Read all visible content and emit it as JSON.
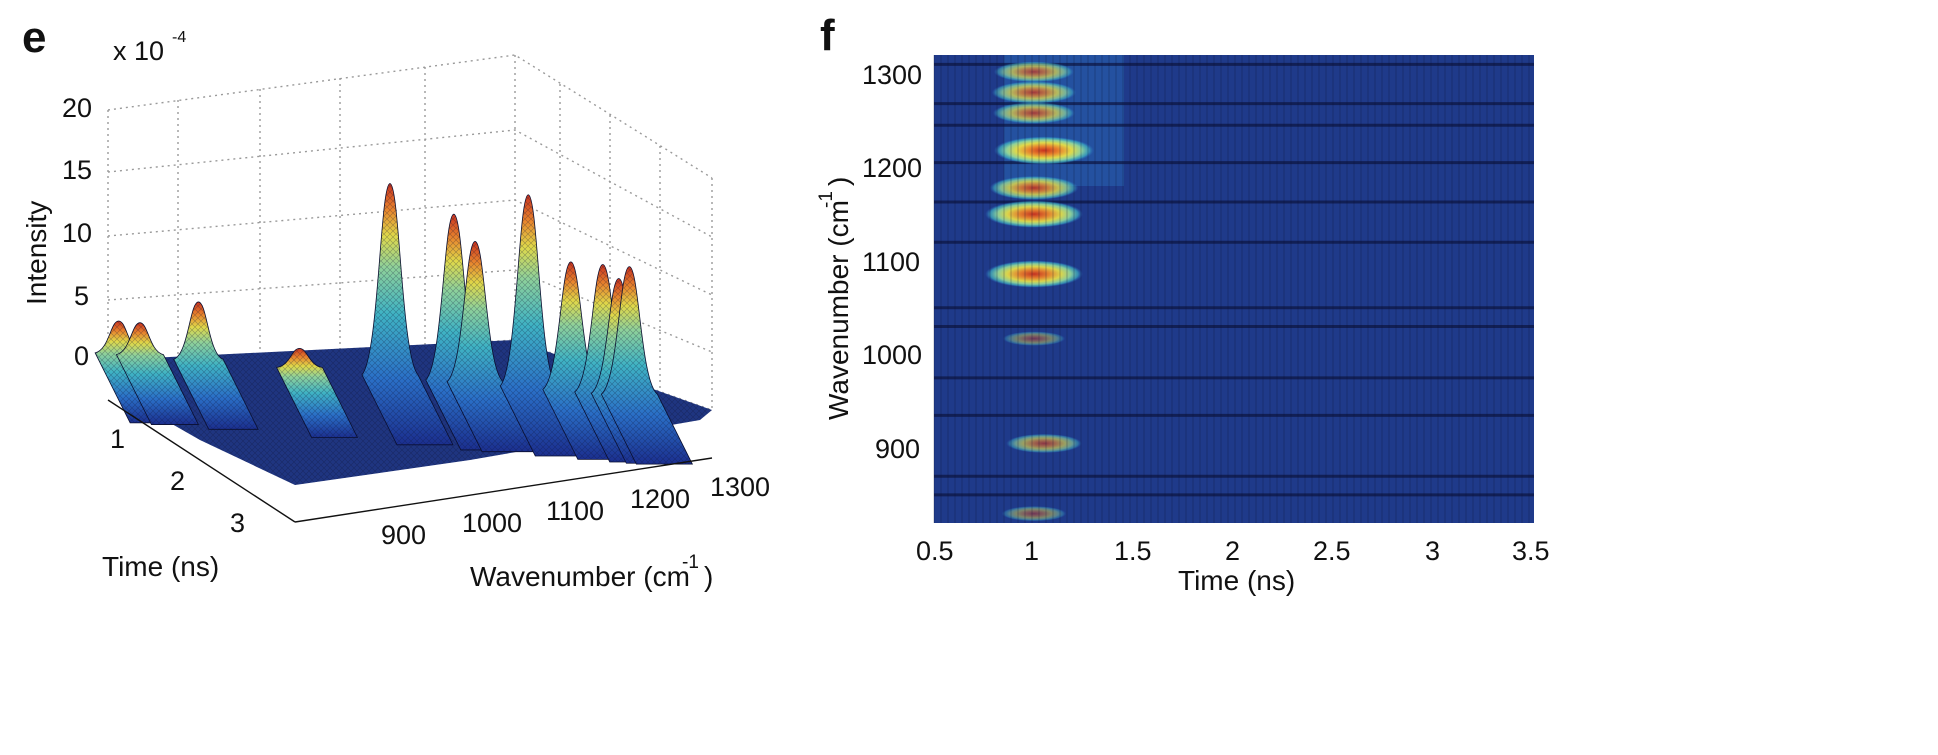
{
  "chart_data": [
    {
      "panel": "e",
      "type": "surface",
      "exponent_label": "x 10",
      "exponent_power": "-4",
      "zlabel": "Intensity",
      "xlabel_main": "Wavenumber (cm",
      "xlabel_sup": "-1",
      "xlabel_close": ")",
      "ylabel": "Time (ns)",
      "x_ticks": [
        "900",
        "1000",
        "1100",
        "1200",
        "1300"
      ],
      "y_ticks": [
        "1",
        "2",
        "3"
      ],
      "z_ticks": [
        "0",
        "5",
        "10",
        "15",
        "20"
      ],
      "xlim": [
        820,
        1320
      ],
      "ylim": [
        0.5,
        3.5
      ],
      "zlim": [
        0,
        20
      ],
      "peaks": [
        {
          "wavenumber": 830,
          "time": 1.0,
          "intensity": 2.5
        },
        {
          "wavenumber": 850,
          "time": 1.0,
          "intensity": 2.5
        },
        {
          "wavenumber": 905,
          "time": 1.0,
          "intensity": 4.5
        },
        {
          "wavenumber": 1000,
          "time": 1.0,
          "intensity": 1.5
        },
        {
          "wavenumber": 1085,
          "time": 1.0,
          "intensity": 15
        },
        {
          "wavenumber": 1145,
          "time": 1.0,
          "intensity": 13
        },
        {
          "wavenumber": 1165,
          "time": 1.0,
          "intensity": 11
        },
        {
          "wavenumber": 1215,
          "time": 1.0,
          "intensity": 15
        },
        {
          "wavenumber": 1255,
          "time": 1.0,
          "intensity": 10
        },
        {
          "wavenumber": 1285,
          "time": 1.0,
          "intensity": 10
        },
        {
          "wavenumber": 1300,
          "time": 1.0,
          "intensity": 9
        },
        {
          "wavenumber": 1310,
          "time": 1.0,
          "intensity": 10
        }
      ],
      "colormap": [
        "#1b2f8f",
        "#2a6fc7",
        "#3fb3c4",
        "#8fd19a",
        "#e0d94a",
        "#e8842d",
        "#c9321f"
      ]
    },
    {
      "panel": "f",
      "type": "heatmap",
      "xlabel": "Time (ns)",
      "ylabel_main": "Wavenumber (cm",
      "ylabel_sup": "-1",
      "ylabel_close": ")",
      "x_ticks": [
        "0.5",
        "1",
        "1.5",
        "2",
        "2.5",
        "3",
        "3.5"
      ],
      "y_ticks": [
        "900",
        "1000",
        "1100",
        "1200",
        "1300"
      ],
      "xlim": [
        0.5,
        3.5
      ],
      "ylim": [
        820,
        1320
      ],
      "background_color": "#1f3a8a",
      "hot_spots": [
        {
          "wavenumber": 1302,
          "time": 1.0,
          "intensity": 0.55
        },
        {
          "wavenumber": 1280,
          "time": 1.0,
          "intensity": 0.65
        },
        {
          "wavenumber": 1258,
          "time": 1.0,
          "intensity": 0.6
        },
        {
          "wavenumber": 1218,
          "time": 1.05,
          "intensity": 1.0
        },
        {
          "wavenumber": 1178,
          "time": 1.0,
          "intensity": 0.75
        },
        {
          "wavenumber": 1150,
          "time": 1.0,
          "intensity": 0.95
        },
        {
          "wavenumber": 1086,
          "time": 1.0,
          "intensity": 0.95
        },
        {
          "wavenumber": 1017,
          "time": 1.0,
          "intensity": 0.15
        },
        {
          "wavenumber": 905,
          "time": 1.05,
          "intensity": 0.45
        },
        {
          "wavenumber": 830,
          "time": 1.0,
          "intensity": 0.2
        }
      ],
      "row_lines": [
        1310,
        1268,
        1245,
        1205,
        1163,
        1120,
        1050,
        1030,
        975,
        935,
        870,
        850
      ]
    }
  ]
}
